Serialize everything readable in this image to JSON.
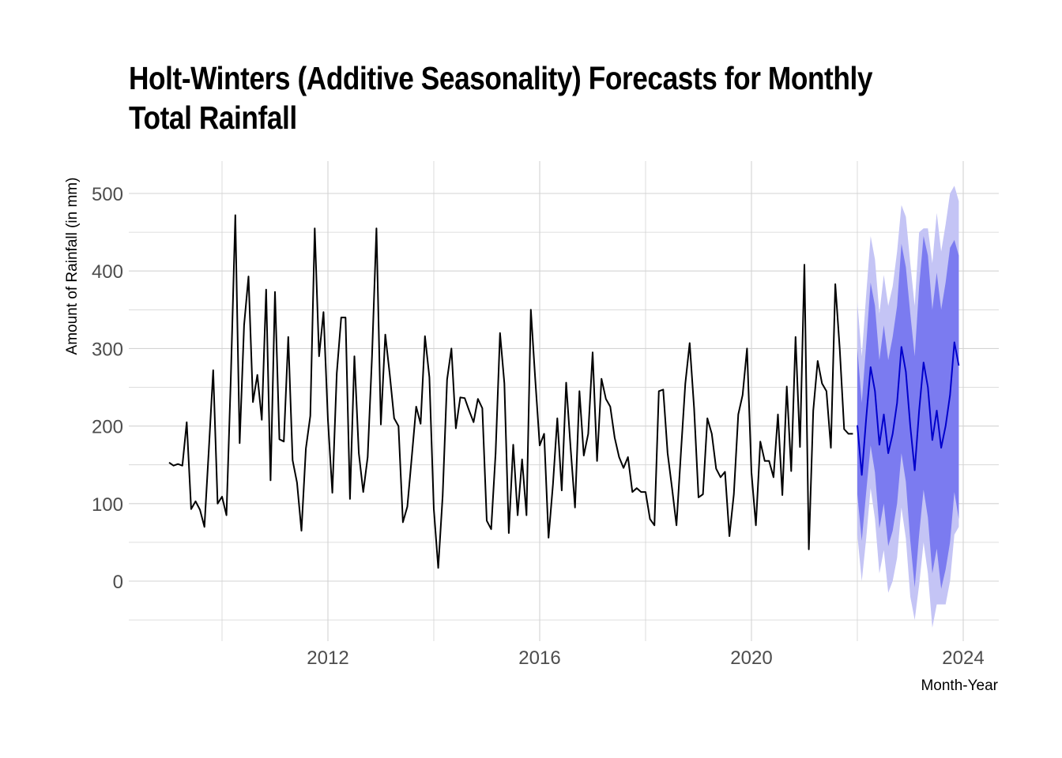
{
  "chart_data": {
    "type": "line",
    "title": "Holt-Winters (Additive Seasonality) Forecasts for Monthly Total Rainfall",
    "xlabel": "Month-Year",
    "ylabel": "Amount of Rainfall (in mm)",
    "ylim": [
      -50,
      520
    ],
    "xlim": [
      2008.3,
      2024.8
    ],
    "yticks": [
      0,
      100,
      200,
      300,
      400,
      500
    ],
    "xticks": [
      2012,
      2016,
      2020,
      2024
    ],
    "grid": true,
    "legend": "none",
    "colors": {
      "observed": "#000000",
      "forecast": "#0000cc",
      "band80": "#7b7bf0",
      "band95": "#c4c4f5",
      "grid": "#d3d3d3"
    },
    "observed": {
      "name": "Observed monthly rainfall",
      "start": "2009-01",
      "values": [
        153,
        149,
        151,
        149,
        205,
        93,
        103,
        92,
        70,
        170,
        272,
        100,
        109,
        85,
        265,
        472,
        178,
        330,
        393,
        231,
        266,
        208,
        376,
        130,
        373,
        183,
        180,
        315,
        156,
        127,
        65,
        171,
        213,
        455,
        290,
        347,
        208,
        114,
        268,
        340,
        340,
        106,
        290,
        165,
        115,
        160,
        290,
        455,
        202,
        318,
        267,
        210,
        200,
        76,
        96,
        160,
        225,
        203,
        316,
        263,
        93,
        17,
        110,
        260,
        300,
        197,
        237,
        236,
        220,
        205,
        235,
        223,
        78,
        67,
        165,
        320,
        255,
        62,
        176,
        85,
        157,
        85,
        350,
        260,
        175,
        190,
        56,
        125,
        210,
        117,
        256,
        172,
        95,
        245,
        162,
        190,
        295,
        155,
        261,
        235,
        225,
        185,
        160,
        146,
        160,
        115,
        120,
        115,
        115,
        80,
        72,
        245,
        247,
        165,
        120,
        72,
        165,
        255,
        307,
        223,
        108,
        112,
        210,
        190,
        145,
        134,
        141,
        58,
        112,
        215,
        240,
        300,
        140,
        72,
        180,
        155,
        155,
        134,
        215,
        111,
        251,
        142,
        315,
        173,
        408,
        41,
        220,
        284,
        255,
        245,
        172,
        383,
        300,
        196,
        190,
        190
      ]
    },
    "forecast": {
      "name": "Holt-Winters point forecast",
      "start": "2022-01",
      "values": [
        201,
        137,
        210,
        276,
        245,
        176,
        215,
        165,
        190,
        230,
        302,
        270,
        200,
        143,
        220,
        282,
        250,
        182,
        220,
        172,
        200,
        240,
        308,
        278
      ],
      "lo80": [
        112,
        52,
        115,
        175,
        140,
        68,
        100,
        45,
        65,
        100,
        165,
        128,
        52,
        -8,
        60,
        118,
        82,
        10,
        42,
        -10,
        15,
        50,
        115,
        80
      ],
      "hi80": [
        300,
        230,
        305,
        385,
        355,
        285,
        330,
        285,
        315,
        355,
        435,
        405,
        345,
        290,
        380,
        445,
        420,
        350,
        398,
        350,
        385,
        430,
        440,
        420
      ],
      "lo95": [
        60,
        0,
        55,
        120,
        80,
        10,
        40,
        -15,
        0,
        30,
        95,
        55,
        -20,
        -50,
        -5,
        50,
        10,
        -60,
        -30,
        -30,
        -30,
        0,
        60,
        70
      ],
      "hi95": [
        360,
        290,
        370,
        445,
        415,
        345,
        395,
        355,
        380,
        425,
        485,
        470,
        410,
        355,
        450,
        455,
        455,
        410,
        475,
        425,
        460,
        500,
        510,
        490
      ]
    }
  }
}
